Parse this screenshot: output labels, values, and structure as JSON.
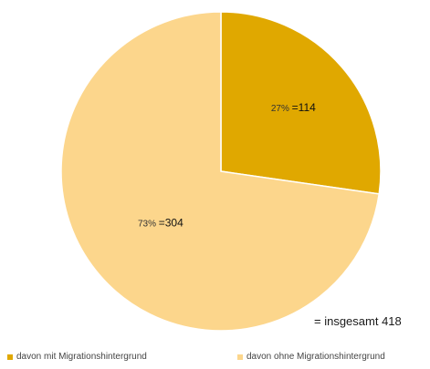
{
  "chart_data": {
    "type": "pie",
    "categories": [
      "davon mit Migrationshintergrund",
      "davon ohne Migrationshintergrund"
    ],
    "values": [
      114,
      304
    ],
    "percentages": [
      27,
      73
    ],
    "colors": [
      "#E0A800",
      "#FCD68C"
    ],
    "data_labels": [
      {
        "percent": "27%",
        "value": "=114"
      },
      {
        "percent": "73%",
        "value": "=304"
      }
    ],
    "legend_position": "bottom",
    "annotation": "= insgesamt 418"
  }
}
